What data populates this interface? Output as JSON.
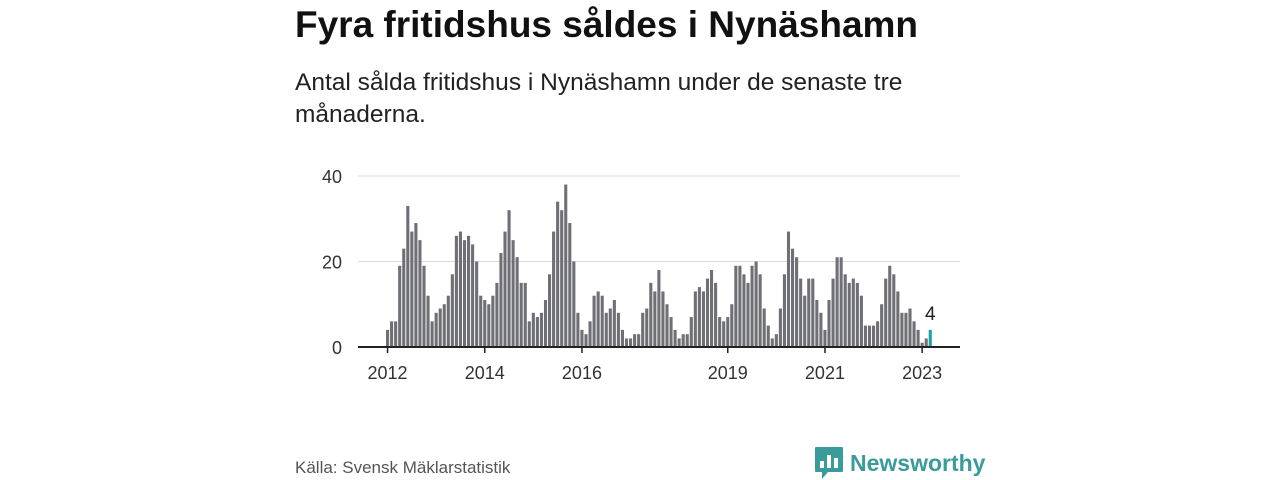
{
  "title": "Fyra fritidshus såldes i Nynäshamn",
  "subtitle": "Antal sålda fritidshus i Nynäshamn under de senaste tre månaderna.",
  "source": "Källa: Svensk Mäklarstatistik",
  "brand": {
    "name": "Newsworthy",
    "logo_icon": "bar-chart-logo-icon",
    "color": "#3a9c9a"
  },
  "colors": {
    "bar": "#6f6f76",
    "highlight": "#1aa3a6",
    "grid": "#d9d9d9",
    "axis": "#222222"
  },
  "chart_data": {
    "type": "bar",
    "title": "",
    "xlabel": "",
    "ylabel": "",
    "ylim": [
      0,
      40
    ],
    "yticks": [
      0,
      20,
      40
    ],
    "xtick_labels": [
      "2012",
      "2014",
      "2016",
      "2019",
      "2021",
      "2023"
    ],
    "grid": true,
    "highlight_label": "4",
    "series": [
      {
        "categories": [
          "2012-01",
          "2012-02",
          "2012-03",
          "2012-04",
          "2012-05",
          "2012-06",
          "2012-07",
          "2012-08",
          "2012-09",
          "2012-10",
          "2012-11",
          "2012-12",
          "2013-01",
          "2013-02",
          "2013-03",
          "2013-04",
          "2013-05",
          "2013-06",
          "2013-07",
          "2013-08",
          "2013-09",
          "2013-10",
          "2013-11",
          "2013-12",
          "2014-01",
          "2014-02",
          "2014-03",
          "2014-04",
          "2014-05",
          "2014-06",
          "2014-07",
          "2014-08",
          "2014-09",
          "2014-10",
          "2014-11",
          "2014-12",
          "2015-01",
          "2015-02",
          "2015-03",
          "2015-04",
          "2015-05",
          "2015-06",
          "2015-07",
          "2015-08",
          "2015-09",
          "2015-10",
          "2015-11",
          "2015-12",
          "2016-01",
          "2016-02",
          "2016-03",
          "2016-04",
          "2016-05",
          "2016-06",
          "2016-07",
          "2016-08",
          "2016-09",
          "2016-10",
          "2016-11",
          "2016-12",
          "2017-01",
          "2017-02",
          "2017-03",
          "2017-04",
          "2017-05",
          "2017-06",
          "2017-07",
          "2017-08",
          "2017-09",
          "2017-10",
          "2017-11",
          "2017-12",
          "2018-01",
          "2018-02",
          "2018-03",
          "2018-04",
          "2018-05",
          "2018-06",
          "2018-07",
          "2018-08",
          "2018-09",
          "2018-10",
          "2018-11",
          "2018-12",
          "2019-01",
          "2019-02",
          "2019-03",
          "2019-04",
          "2019-05",
          "2019-06",
          "2019-07",
          "2019-08",
          "2019-09",
          "2019-10",
          "2019-11",
          "2019-12",
          "2020-01",
          "2020-02",
          "2020-03",
          "2020-04",
          "2020-05",
          "2020-06",
          "2020-07",
          "2020-08",
          "2020-09",
          "2020-10",
          "2020-11",
          "2020-12",
          "2021-01",
          "2021-02",
          "2021-03",
          "2021-04",
          "2021-05",
          "2021-06",
          "2021-07",
          "2021-08",
          "2021-09",
          "2021-10",
          "2021-11",
          "2021-12",
          "2022-01",
          "2022-02",
          "2022-03",
          "2022-04",
          "2022-05",
          "2022-06",
          "2022-07",
          "2022-08",
          "2022-09",
          "2022-10",
          "2022-11",
          "2022-12",
          "2023-01",
          "2023-02",
          "2023-03"
        ],
        "values": [
          4,
          6,
          6,
          19,
          23,
          33,
          27,
          29,
          25,
          19,
          12,
          6,
          8,
          9,
          10,
          12,
          17,
          26,
          27,
          25,
          26,
          24,
          20,
          12,
          11,
          10,
          12,
          15,
          22,
          27,
          32,
          25,
          21,
          15,
          15,
          6,
          8,
          7,
          8,
          11,
          17,
          27,
          34,
          32,
          38,
          29,
          20,
          8,
          4,
          3,
          6,
          12,
          13,
          12,
          8,
          9,
          11,
          8,
          4,
          2,
          2,
          3,
          3,
          8,
          9,
          15,
          13,
          18,
          13,
          10,
          7,
          4,
          2,
          3,
          3,
          7,
          13,
          14,
          13,
          16,
          18,
          15,
          7,
          6,
          7,
          10,
          19,
          19,
          17,
          15,
          19,
          20,
          17,
          9,
          5,
          2,
          3,
          9,
          17,
          27,
          23,
          21,
          16,
          12,
          16,
          16,
          11,
          8,
          4,
          11,
          16,
          21,
          21,
          17,
          15,
          16,
          15,
          12,
          5,
          5,
          5,
          6,
          10,
          16,
          19,
          17,
          13,
          8,
          8,
          9,
          6,
          4,
          1,
          2,
          4
        ]
      }
    ]
  }
}
